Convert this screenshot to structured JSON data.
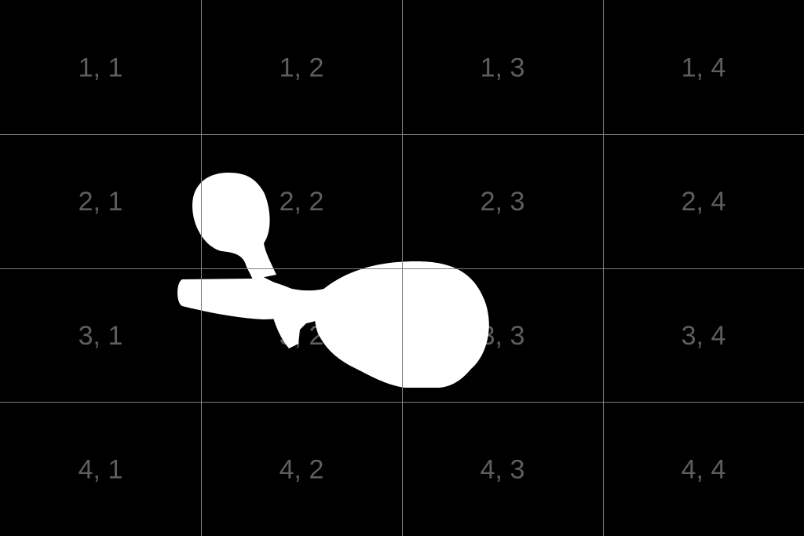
{
  "grid": {
    "rows": 4,
    "cols": 4,
    "line_color": "#808080",
    "label_color": "#5e5e5e",
    "background": "#000000",
    "labels": [
      [
        "1, 1",
        "1, 2",
        "1, 3",
        "1, 4"
      ],
      [
        "2, 1",
        "2, 2",
        "2, 3",
        "2, 4"
      ],
      [
        "3, 1",
        "3, 2",
        "3, 3",
        "3, 4"
      ],
      [
        "4, 1",
        "4, 2",
        "4, 3",
        "4, 4"
      ]
    ]
  },
  "mask": {
    "color": "#ffffff",
    "description_icon": "white-silhouette-shape"
  }
}
